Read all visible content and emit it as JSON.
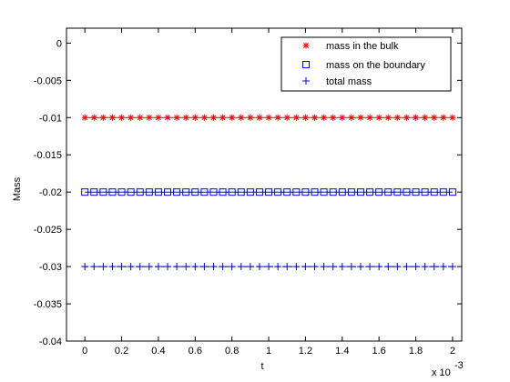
{
  "chart_data": {
    "type": "scatter",
    "xlabel": "t",
    "ylabel": "Mass",
    "x_exponent_label": "x 10",
    "x_exponent_power": "-3",
    "xlim": [
      -0.0001,
      0.00205
    ],
    "ylim": [
      -0.04,
      0.002
    ],
    "x_ticks": [
      0,
      0.0002,
      0.0004,
      0.0006,
      0.0008,
      0.001,
      0.0012,
      0.0014,
      0.0016,
      0.0018,
      0.002
    ],
    "x_tick_labels": [
      "0",
      "0.2",
      "0.4",
      "0.6",
      "0.8",
      "1",
      "1.2",
      "1.4",
      "1.6",
      "1.8",
      "2"
    ],
    "y_ticks": [
      0,
      -0.005,
      -0.01,
      -0.015,
      -0.02,
      -0.025,
      -0.03,
      -0.035,
      -0.04
    ],
    "y_tick_labels": [
      "0",
      "-0.005",
      "-0.01",
      "-0.015",
      "-0.02",
      "-0.025",
      "-0.03",
      "-0.035",
      "-0.04"
    ],
    "grid": false,
    "legend_position": "top-right",
    "x": [
      0,
      5e-05,
      0.0001,
      0.00015,
      0.0002,
      0.00025,
      0.0003,
      0.00035,
      0.0004,
      0.00045,
      0.0005,
      0.00055,
      0.0006,
      0.00065,
      0.0007,
      0.00075,
      0.0008,
      0.00085,
      0.0009,
      0.00095,
      0.001,
      0.00105,
      0.0011,
      0.00115,
      0.0012,
      0.00125,
      0.0013,
      0.00135,
      0.0014,
      0.00145,
      0.0015,
      0.00155,
      0.0016,
      0.00165,
      0.0017,
      0.00175,
      0.0018,
      0.00185,
      0.0019,
      0.00195,
      0.002
    ],
    "series": [
      {
        "name": "mass in the bulk",
        "marker": "asterisk",
        "color": "#ff0000",
        "value": -0.01,
        "line": "-",
        "line_color": "#ff0000"
      },
      {
        "name": "mass on the boundary",
        "marker": "square",
        "color": "#0000ff",
        "value": -0.02,
        "line": "-",
        "line_color": "#0000ff"
      },
      {
        "name": "total mass",
        "marker": "plus",
        "color": "#0000ff",
        "value": -0.03,
        "line": "--",
        "line_color": "#000000"
      }
    ]
  }
}
